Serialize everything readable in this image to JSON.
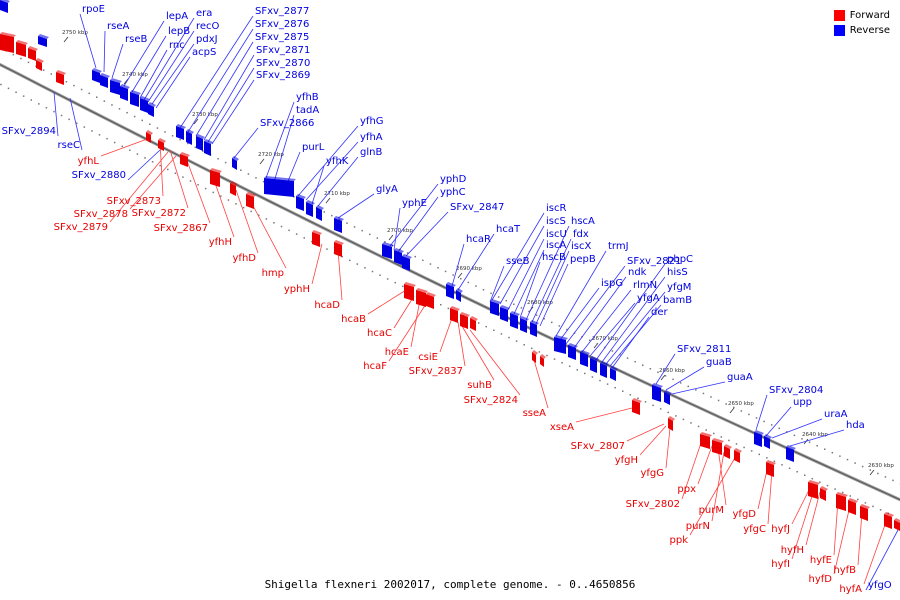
{
  "caption": "Shigella flexneri 2002017, complete genome. - 0..4650856",
  "legend": [
    {
      "label": "Forward",
      "color": "#ff0000"
    },
    {
      "label": "Reverse",
      "color": "#0000ff"
    }
  ],
  "colors": {
    "forward": "#e80000",
    "reverse": "#0000e0",
    "forward_line": "#ff4040",
    "reverse_line": "#3030ff",
    "axis": "#808080"
  },
  "ticks": [
    "2750 kbp",
    "2740 kbp",
    "2730 kbp",
    "2720 kbp",
    "2710 kbp",
    "2700 kbp",
    "2690 kbp",
    "2680 kbp",
    "2670 kbp",
    "2660 kbp",
    "2650 kbp",
    "2640 kbp",
    "2630 kbp"
  ],
  "reverse_labels": [
    "rpoE",
    "rseA",
    "rseB",
    "lepA",
    "lepB",
    "rnc",
    "era",
    "recO",
    "pdxJ",
    "acpS",
    "SFxv_2877",
    "SFxv_2876",
    "SFxv_2875",
    "SFxv_2871",
    "SFxv_2870",
    "SFxv_2869",
    "SFxv_2894",
    "rseC",
    "SFxv_2880",
    "SFxv_2866",
    "yfhB",
    "tadA",
    "purL",
    "yfhG",
    "yfhA",
    "yfhK",
    "glnB",
    "glyA",
    "yphD",
    "yphC",
    "yphE",
    "SFxv_2847",
    "hcaR",
    "hcaT",
    "iscR",
    "iscS",
    "iscU",
    "iscA",
    "hscB",
    "hscA",
    "fdx",
    "iscX",
    "pepB",
    "sseB",
    "trmJ",
    "SFxv_2821",
    "ndk",
    "rlmN",
    "yfgA",
    "ispG",
    "pbpC",
    "hisS",
    "yfgM",
    "bamB",
    "der",
    "SFxv_2811",
    "guaB",
    "guaA",
    "SFxv_2804",
    "upp",
    "uraA",
    "hda",
    "yfgO",
    "bamC"
  ],
  "forward_labels": [
    "yfhL",
    "SFxv_2873",
    "SFxv_2878",
    "SFxv_2872",
    "SFxv_2879",
    "SFxv_2867",
    "yfhH",
    "yfhD",
    "hmp",
    "yphH",
    "hcaD",
    "hcaB",
    "hcaC",
    "hcaE",
    "hcaF",
    "csiE",
    "SFxv_2837",
    "suhB",
    "SFxv_2824",
    "sseA",
    "xseA",
    "SFxv_2807",
    "yfgH",
    "yfgG",
    "SFxv_2802",
    "ppx",
    "purM",
    "purN",
    "ppk",
    "yfgD",
    "yfgC",
    "hyfJ",
    "hyfH",
    "hyfI",
    "hyfE",
    "hyfD",
    "hyfB",
    "hyfA"
  ]
}
